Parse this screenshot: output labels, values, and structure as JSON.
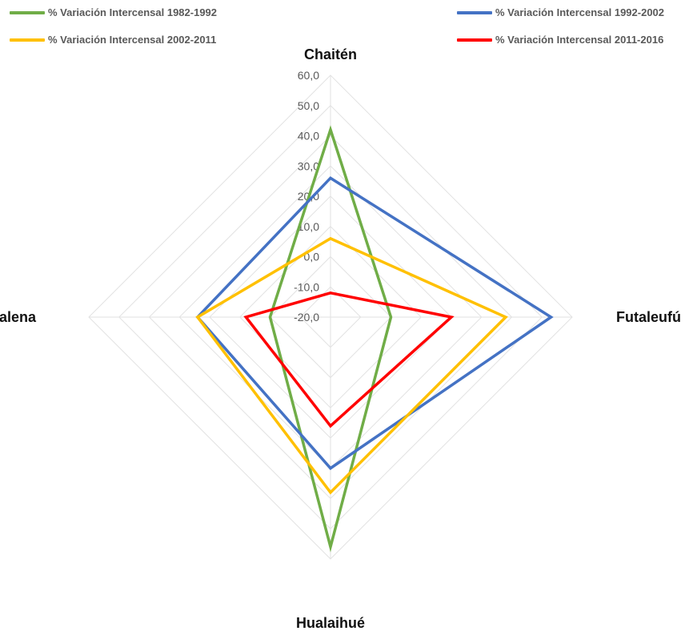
{
  "chart_data": {
    "type": "radar",
    "categories": [
      "Chaitén",
      "Futaleufú",
      "Hualaihué",
      "Palena"
    ],
    "r_ticks": [
      "60,0",
      "50,0",
      "40,0",
      "30,0",
      "20,0",
      "10,0",
      "0,0",
      "-10,0",
      "-20,0"
    ],
    "r_range": [
      -20,
      60
    ],
    "series": [
      {
        "name": "% Variación Intercensal 1982-1992",
        "color": "#70AD47",
        "values": [
          42,
          0,
          56,
          0
        ]
      },
      {
        "name": "% Variación Intercensal 1992-2002",
        "color": "#4472C4",
        "values": [
          26,
          53,
          30,
          24
        ]
      },
      {
        "name": "% Variación Intercensal 2002-2011",
        "color": "#FFC000",
        "values": [
          6,
          38,
          38,
          24
        ]
      },
      {
        "name": "% Variación Intercensal 2011-2016",
        "color": "#FF0000",
        "values": [
          -12,
          20,
          16,
          8
        ]
      }
    ],
    "legend_position": "top"
  }
}
